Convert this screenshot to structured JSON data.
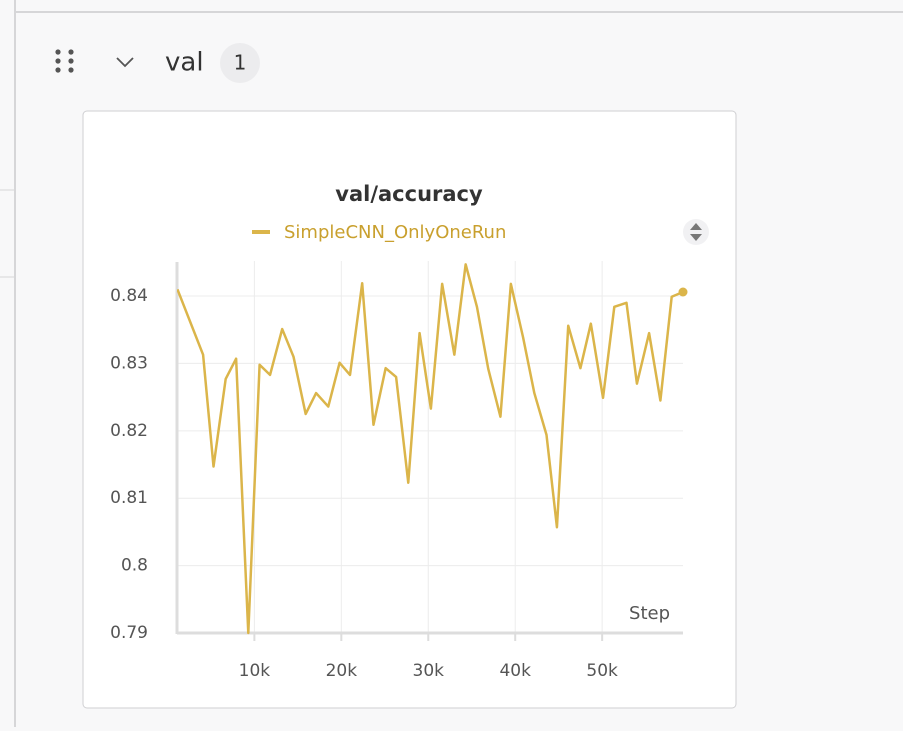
{
  "section": {
    "title": "val",
    "count": "1"
  },
  "chart_data": {
    "type": "line",
    "title": "val/accuracy",
    "x_label": "Step",
    "x": [
      1150,
      4100,
      5300,
      6700,
      7900,
      9300,
      10600,
      11800,
      13200,
      14500,
      15900,
      17100,
      18500,
      19800,
      21000,
      22400,
      23700,
      25100,
      26300,
      27700,
      29000,
      30300,
      31600,
      33000,
      34300,
      35600,
      36900,
      38300,
      39500,
      40900,
      42200,
      43600,
      44800,
      46100,
      47500,
      48700,
      50100,
      51400,
      52800,
      54000,
      55400,
      56700,
      58000,
      59300
    ],
    "series": [
      {
        "name": "SimpleCNN_OnlyOneRun",
        "color": "#dbb54a",
        "values": [
          0.841,
          0.8313,
          0.8147,
          0.8277,
          0.8307,
          0.79,
          0.8298,
          0.8283,
          0.8351,
          0.831,
          0.8225,
          0.8256,
          0.8236,
          0.8301,
          0.8283,
          0.8419,
          0.8209,
          0.8293,
          0.828,
          0.8123,
          0.8345,
          0.8233,
          0.8418,
          0.8313,
          0.8447,
          0.8384,
          0.8292,
          0.8221,
          0.8418,
          0.8339,
          0.8256,
          0.8194,
          0.8057,
          0.8356,
          0.8293,
          0.8359,
          0.8249,
          0.8384,
          0.839,
          0.827,
          0.8345,
          0.8245,
          0.8399,
          0.8406
        ]
      }
    ],
    "xlim": [
      1100,
      59300
    ],
    "ylim": [
      0.79,
      0.8452
    ],
    "xticks": [
      {
        "value": 10000,
        "label": "10k"
      },
      {
        "value": 20000,
        "label": "20k"
      },
      {
        "value": 30000,
        "label": "30k"
      },
      {
        "value": 40000,
        "label": "40k"
      },
      {
        "value": 50000,
        "label": "50k"
      }
    ],
    "yticks": [
      0.79,
      0.8,
      0.81,
      0.82,
      0.83,
      0.84
    ],
    "grid": true
  }
}
